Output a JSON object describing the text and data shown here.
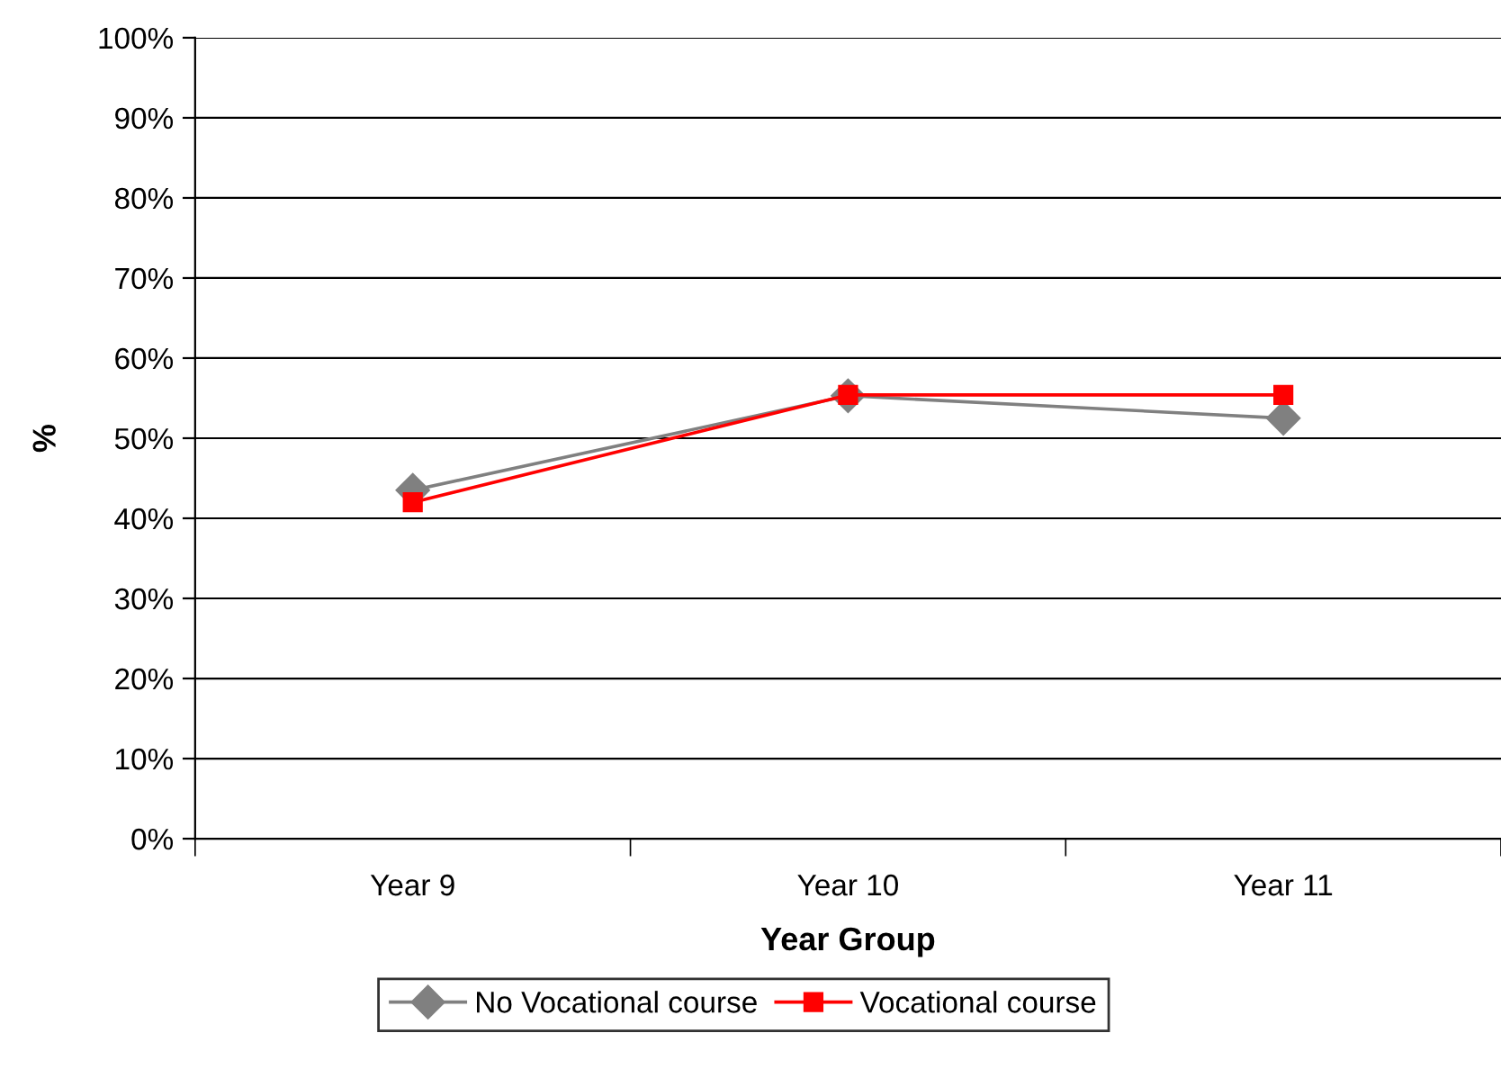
{
  "chart_data": {
    "type": "line",
    "xlabel": "Year Group",
    "ylabel": "%",
    "categories": [
      "Year 9",
      "Year 10",
      "Year 11"
    ],
    "series": [
      {
        "name": "No Vocational course",
        "color": "#808080",
        "marker": "diamond",
        "values": [
          43.5,
          55.3,
          52.5
        ]
      },
      {
        "name": "Vocational course",
        "color": "#ff0000",
        "marker": "square",
        "values": [
          42.0,
          55.4,
          55.4
        ]
      }
    ],
    "ylim": [
      0,
      100
    ],
    "yticks": [
      {
        "value": 0,
        "label": "0%"
      },
      {
        "value": 10,
        "label": "10%"
      },
      {
        "value": 20,
        "label": "20%"
      },
      {
        "value": 30,
        "label": "30%"
      },
      {
        "value": 40,
        "label": "40%"
      },
      {
        "value": 50,
        "label": "50%"
      },
      {
        "value": 60,
        "label": "60%"
      },
      {
        "value": 70,
        "label": "70%"
      },
      {
        "value": 80,
        "label": "80%"
      },
      {
        "value": 90,
        "label": "90%"
      },
      {
        "value": 100,
        "label": "100%"
      }
    ],
    "grid": "y",
    "legend": "bottom",
    "line_style": "solid"
  }
}
